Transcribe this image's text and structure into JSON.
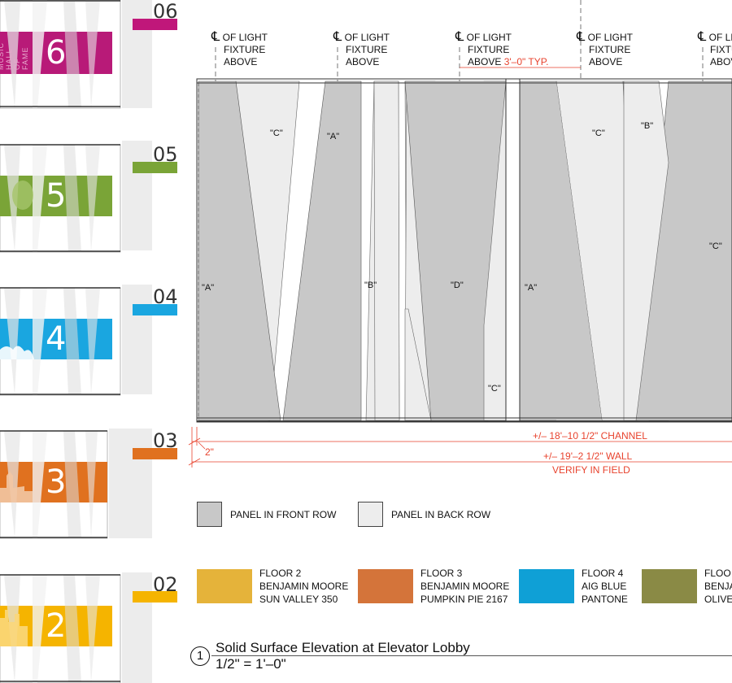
{
  "floors": [
    {
      "number": "06",
      "digit": "6",
      "tab_color": "#c0177a",
      "band_color": "#b81a78",
      "band_text": "MUSIC HALL OF FAME"
    },
    {
      "number": "05",
      "digit": "5",
      "tab_color": "#7aa437",
      "band_color": "#7aa437",
      "band_text": ""
    },
    {
      "number": "04",
      "digit": "4",
      "tab_color": "#1aa6e0",
      "band_color": "#1aa6e0",
      "band_text": ""
    },
    {
      "number": "03",
      "digit": "3",
      "tab_color": "#e0711f",
      "band_color": "#e0711f",
      "band_text": ""
    },
    {
      "number": "02",
      "digit": "2",
      "tab_color": "#f5b400",
      "band_color": "#f5b400",
      "band_text": ""
    }
  ],
  "light_fixture_notes": [
    {
      "symbol": "℄",
      "line1": "OF LIGHT",
      "line2": "FIXTURE",
      "line3": "ABOVE",
      "extra": ""
    },
    {
      "symbol": "℄",
      "line1": "OF LIGHT",
      "line2": "FIXTURE",
      "line3": "ABOVE",
      "extra": ""
    },
    {
      "symbol": "℄",
      "line1": "OF LIGHT",
      "line2": "FIXTURE",
      "line3": "ABOVE",
      "extra": "3'–0\" TYP."
    },
    {
      "symbol": "℄",
      "line1": "OF LIGHT",
      "line2": "FIXTURE",
      "line3": "ABOVE",
      "extra": ""
    },
    {
      "symbol": "℄",
      "line1": "OF LIGHT",
      "line2": "FIXTU",
      "line3": "ABOV",
      "extra": ""
    }
  ],
  "panel_labels": {
    "a1": "\"A\"",
    "c1": "\"C\"",
    "a2": "\"A\"",
    "b1": "\"B\"",
    "d1": "\"D\"",
    "c2": "\"C\"",
    "a3": "\"A\"",
    "c3": "\"C\"",
    "b2": "\"B\"",
    "c4": "\"C\""
  },
  "dimensions": {
    "offset": "2\"",
    "channel": "+/– 18'–10 1/2\" CHANNEL",
    "wall": "+/– 19'–2 1/2\" WALL",
    "verify": "VERIFY IN FIELD"
  },
  "legend": {
    "front": {
      "label": "PANEL IN FRONT ROW",
      "color": "#c8c8c8"
    },
    "back": {
      "label": "PANEL IN BACK ROW",
      "color": "#ededed"
    }
  },
  "color_key": [
    {
      "color": "#e5b33a",
      "l1": "FLOOR 2",
      "l2": "BENJAMIN MOORE",
      "l3": "SUN VALLEY 350"
    },
    {
      "color": "#d4743a",
      "l1": "FLOOR 3",
      "l2": "BENJAMIN MOORE",
      "l3": "PUMPKIN PIE 2167"
    },
    {
      "color": "#0fa0d6",
      "l1": "FLOOR 4",
      "l2": "AIG BLUE",
      "l3": "PANTONE"
    },
    {
      "color": "#8a8a45",
      "l1": "FLOO",
      "l2": "BENJA",
      "l3": "OLIVE"
    }
  ],
  "title": {
    "number": "1",
    "main": "Solid Surface Elevation at Elevator Lobby",
    "scale": "1/2\" = 1'–0\""
  }
}
